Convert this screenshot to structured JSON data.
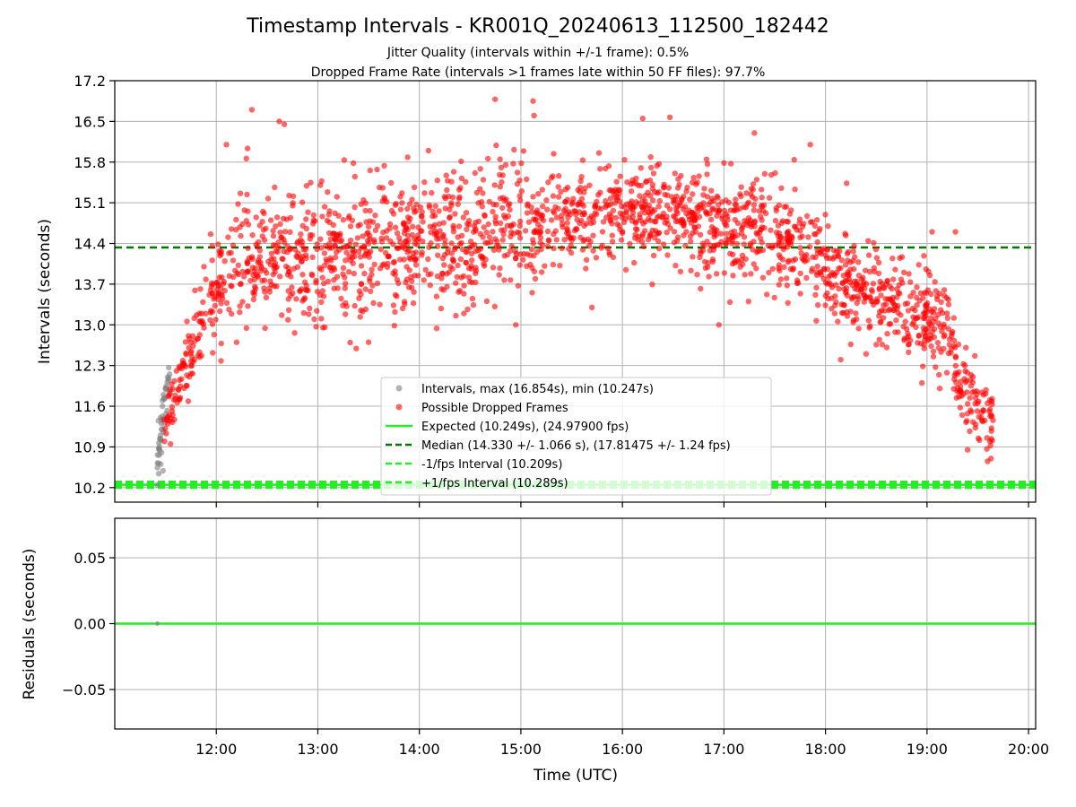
{
  "title": "Timestamp Intervals - KR001Q_20240613_112500_182442",
  "subtitle_lines": [
    "Jitter Quality (intervals within +/-1 frame): 0.5%",
    "Dropped Frame Rate (intervals >1 frames late within 50 FF files): 97.7%"
  ],
  "colors": {
    "intervals": "#808080",
    "dropped": "#ff0000",
    "expected": "#22ee22",
    "median": "#007700",
    "fps_band": "#22ee22"
  },
  "chart_data": [
    {
      "type": "scatter",
      "name": "intervals-panel",
      "ylabel": "Intervals (seconds)",
      "xlabel": "",
      "xlim_hours": [
        11.0,
        20.07
      ],
      "ylim": [
        9.95,
        17.2
      ],
      "yticks": [
        "10.2",
        "10.9",
        "11.6",
        "12.3",
        "13.0",
        "13.7",
        "14.4",
        "15.1",
        "15.8",
        "16.5",
        "17.2"
      ],
      "xticks": [
        "12:00",
        "13:00",
        "14:00",
        "15:00",
        "16:00",
        "17:00",
        "18:00",
        "19:00",
        "20:00"
      ],
      "grid": true,
      "legend_position": "lower-center",
      "legend": [
        {
          "label": "Intervals, max (16.854s), min (10.247s)",
          "kind": "point",
          "color": "#808080"
        },
        {
          "label": "Possible Dropped Frames",
          "kind": "point",
          "color": "#ff0000"
        },
        {
          "label": "Expected (10.249s), (24.97900 fps)",
          "kind": "line",
          "color": "#22ee22"
        },
        {
          "label": "Median (14.330 +/- 1.066 s), (17.81475 +/- 1.24 fps)",
          "kind": "dashed",
          "color": "#007700"
        },
        {
          "label": "-1/fps Interval (10.209s)",
          "kind": "dashed",
          "color": "#22ee22"
        },
        {
          "label": "+1/fps Interval (10.289s)",
          "kind": "dashed",
          "color": "#22ee22"
        }
      ],
      "reference_lines": {
        "expected": 10.249,
        "median": 14.33,
        "minus_fps": 10.209,
        "plus_fps": 10.289
      },
      "series": [
        {
          "name": "Intervals",
          "x_hours": [
            11.42,
            11.43,
            11.44,
            11.45,
            11.46,
            11.47,
            11.48,
            11.5,
            11.52,
            11.54,
            11.43,
            11.46,
            11.49,
            11.44,
            11.47,
            11.51,
            11.53,
            11.45
          ],
          "y": [
            10.25,
            10.62,
            10.85,
            11.1,
            11.3,
            11.6,
            11.8,
            11.9,
            12.1,
            12.15,
            11.35,
            11.2,
            11.75,
            10.9,
            11.7,
            11.95,
            12.05,
            11.4
          ]
        },
        {
          "name": "Possible Dropped Frames",
          "description": "dense band following envelope",
          "envelope": {
            "x_hours": [
              11.48,
              11.6,
              11.75,
              11.9,
              12.2,
              13.0,
              14.0,
              15.0,
              15.5,
              16.0,
              16.5,
              17.0,
              17.5,
              17.8,
              18.0,
              18.3,
              18.6,
              19.0,
              19.2,
              19.3,
              19.5,
              19.65
            ],
            "y_center": [
              11.2,
              11.8,
              12.5,
              13.4,
              14.1,
              14.2,
              14.5,
              14.6,
              14.95,
              15.0,
              14.9,
              14.75,
              14.5,
              14.3,
              14.0,
              13.6,
              13.4,
              13.1,
              13.0,
              12.0,
              11.6,
              11.2
            ],
            "y_spread": [
              0.3,
              0.4,
              0.5,
              0.6,
              0.9,
              1.0,
              0.95,
              0.95,
              0.7,
              0.65,
              0.7,
              0.75,
              0.75,
              0.7,
              0.7,
              0.7,
              0.65,
              0.7,
              0.7,
              0.5,
              0.5,
              0.4
            ]
          },
          "outliers": [
            [
              12.35,
              16.7
            ],
            [
              12.62,
              16.5
            ],
            [
              12.67,
              16.45
            ],
            [
              12.1,
              16.1
            ],
            [
              15.12,
              16.85
            ],
            [
              15.13,
              16.6
            ],
            [
              16.2,
              16.55
            ],
            [
              17.3,
              16.3
            ],
            [
              13.5,
              12.7
            ],
            [
              12.2,
              12.7
            ],
            [
              14.95,
              13.0
            ],
            [
              16.95,
              13.0
            ],
            [
              18.15,
              12.4
            ],
            [
              18.4,
              12.5
            ],
            [
              18.95,
              12.0
            ],
            [
              19.4,
              10.85
            ],
            [
              19.63,
              10.7
            ],
            [
              15.7,
              13.3
            ],
            [
              17.85,
              16.1
            ],
            [
              19.05,
              14.6
            ],
            [
              19.28,
              14.6
            ],
            [
              11.55,
              10.95
            ],
            [
              13.05,
              12.95
            ]
          ]
        }
      ]
    },
    {
      "type": "scatter",
      "name": "residuals-panel",
      "ylabel": "Residuals (seconds)",
      "xlabel": "Time (UTC)",
      "xlim_hours": [
        11.0,
        20.07
      ],
      "ylim": [
        -0.08,
        0.08
      ],
      "yticks": [
        "−0.05",
        "0.00",
        "0.05"
      ],
      "xticks": [
        "12:00",
        "13:00",
        "14:00",
        "15:00",
        "16:00",
        "17:00",
        "18:00",
        "19:00",
        "20:00"
      ],
      "grid": true,
      "series": [
        {
          "name": "Residuals",
          "x_hours": [
            11.42
          ],
          "y": [
            0.0
          ]
        }
      ],
      "reference_lines": {
        "zero": 0.0
      }
    }
  ]
}
